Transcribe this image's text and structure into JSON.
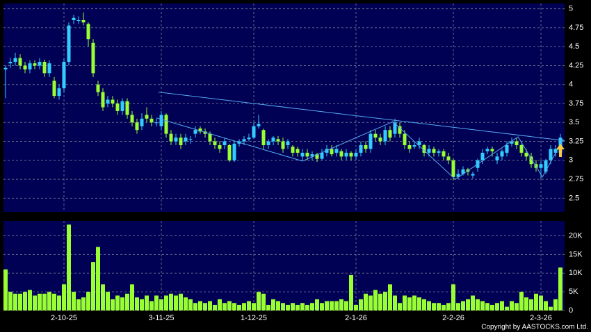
{
  "chart_data": [
    {
      "type": "candlestick",
      "categories": [
        null,
        null,
        null,
        null,
        null,
        null,
        null,
        null,
        null,
        null,
        null,
        null,
        "2-10-25",
        null,
        null,
        null,
        null,
        null,
        null,
        null,
        null,
        null,
        null,
        null,
        null,
        null,
        null,
        null,
        null,
        null,
        null,
        null,
        "3-11-25",
        null,
        null,
        null,
        null,
        null,
        null,
        null,
        null,
        null,
        null,
        null,
        null,
        null,
        null,
        null,
        null,
        null,
        null,
        "1-12-25",
        null,
        null,
        null,
        null,
        null,
        null,
        null,
        null,
        null,
        null,
        null,
        null,
        null,
        null,
        null,
        null,
        null,
        null,
        null,
        null,
        "2-1-26",
        null,
        null,
        null,
        null,
        null,
        null,
        null,
        null,
        null,
        null,
        null,
        null,
        null,
        null,
        null,
        null,
        null,
        null,
        null,
        "2-2-26",
        null,
        null,
        null,
        null,
        null,
        null,
        null,
        null,
        null,
        null,
        null,
        null,
        null,
        null,
        null,
        null,
        null,
        "2-3-26",
        null,
        null,
        null,
        null
      ],
      "ohlc": [
        [
          4.2,
          4.25,
          3.82,
          4.22
        ],
        [
          4.28,
          4.35,
          4.22,
          4.3
        ],
        [
          4.3,
          4.42,
          4.25,
          4.35
        ],
        [
          4.35,
          4.4,
          4.2,
          4.25
        ],
        [
          4.25,
          4.3,
          4.15,
          4.2
        ],
        [
          4.2,
          4.32,
          4.15,
          4.28
        ],
        [
          4.28,
          4.32,
          4.2,
          4.25
        ],
        [
          4.25,
          4.35,
          4.2,
          4.3
        ],
        [
          4.3,
          4.33,
          4.1,
          4.15
        ],
        [
          4.15,
          4.32,
          4.1,
          4.28
        ],
        [
          4.05,
          4.1,
          3.82,
          3.85
        ],
        [
          3.85,
          4.0,
          3.8,
          3.95
        ],
        [
          3.95,
          4.35,
          3.9,
          4.3
        ],
        [
          4.3,
          4.82,
          4.25,
          4.78
        ],
        [
          4.85,
          4.92,
          4.8,
          4.88
        ],
        [
          4.85,
          4.9,
          4.8,
          4.85
        ],
        [
          4.85,
          4.95,
          4.78,
          4.82
        ],
        [
          4.8,
          4.82,
          4.5,
          4.6
        ],
        [
          4.55,
          4.6,
          4.1,
          4.15
        ],
        [
          4.0,
          4.05,
          3.85,
          3.9
        ],
        [
          3.9,
          3.95,
          3.65,
          3.7
        ],
        [
          3.75,
          3.85,
          3.7,
          3.8
        ],
        [
          3.8,
          3.85,
          3.7,
          3.75
        ],
        [
          3.75,
          3.8,
          3.6,
          3.65
        ],
        [
          3.65,
          3.82,
          3.6,
          3.78
        ],
        [
          3.78,
          3.82,
          3.55,
          3.6
        ],
        [
          3.6,
          3.65,
          3.45,
          3.5
        ],
        [
          3.5,
          3.55,
          3.35,
          3.4
        ],
        [
          3.45,
          3.62,
          3.4,
          3.55
        ],
        [
          3.6,
          3.7,
          3.5,
          3.55
        ],
        [
          3.55,
          3.6,
          3.45,
          3.5
        ],
        [
          3.5,
          3.55,
          3.45,
          3.5
        ],
        [
          3.45,
          3.65,
          3.4,
          3.6
        ],
        [
          3.6,
          3.62,
          3.3,
          3.35
        ],
        [
          3.35,
          3.4,
          3.2,
          3.25
        ],
        [
          3.25,
          3.35,
          3.2,
          3.3
        ],
        [
          3.3,
          3.35,
          3.15,
          3.2
        ],
        [
          3.25,
          3.35,
          3.2,
          3.3
        ],
        [
          3.28,
          3.32,
          3.22,
          3.28
        ],
        [
          3.35,
          3.45,
          3.3,
          3.4
        ],
        [
          3.42,
          3.45,
          3.35,
          3.38
        ],
        [
          3.38,
          3.42,
          3.3,
          3.35
        ],
        [
          3.35,
          3.38,
          3.2,
          3.25
        ],
        [
          3.25,
          3.3,
          3.15,
          3.2
        ],
        [
          3.2,
          3.25,
          3.1,
          3.15
        ],
        [
          3.2,
          3.3,
          3.15,
          3.25
        ],
        [
          3.2,
          3.22,
          2.98,
          3.0
        ],
        [
          3.0,
          3.25,
          2.98,
          3.22
        ],
        [
          3.22,
          3.28,
          3.18,
          3.25
        ],
        [
          3.25,
          3.32,
          3.2,
          3.28
        ],
        [
          3.28,
          3.35,
          3.25,
          3.3
        ],
        [
          3.3,
          3.5,
          3.28,
          3.45
        ],
        [
          3.45,
          3.6,
          3.42,
          3.48
        ],
        [
          3.4,
          3.42,
          3.15,
          3.2
        ],
        [
          3.2,
          3.28,
          3.15,
          3.25
        ],
        [
          3.25,
          3.32,
          3.2,
          3.3
        ],
        [
          3.28,
          3.32,
          3.2,
          3.25
        ],
        [
          3.25,
          3.3,
          3.1,
          3.15
        ],
        [
          3.2,
          3.28,
          3.15,
          3.25
        ],
        [
          3.18,
          3.2,
          3.05,
          3.1
        ],
        [
          3.15,
          3.18,
          3.05,
          3.1
        ],
        [
          3.05,
          3.15,
          3.0,
          3.1
        ],
        [
          3.1,
          3.15,
          3.0,
          3.05
        ],
        [
          3.05,
          3.12,
          3.0,
          3.08
        ],
        [
          3.08,
          3.1,
          2.98,
          3.02
        ],
        [
          3.02,
          3.15,
          3.0,
          3.1
        ],
        [
          3.1,
          3.2,
          3.05,
          3.15
        ],
        [
          3.15,
          3.2,
          3.05,
          3.08
        ],
        [
          3.1,
          3.2,
          3.05,
          3.15
        ],
        [
          3.12,
          3.15,
          3.0,
          3.05
        ],
        [
          3.05,
          3.15,
          3.0,
          3.1
        ],
        [
          3.1,
          3.12,
          3.0,
          3.05
        ],
        [
          3.05,
          3.15,
          3.0,
          3.1
        ],
        [
          3.1,
          3.25,
          3.05,
          3.2
        ],
        [
          3.2,
          3.25,
          3.1,
          3.15
        ],
        [
          3.15,
          3.4,
          3.1,
          3.35
        ],
        [
          3.35,
          3.4,
          3.25,
          3.3
        ],
        [
          3.3,
          3.35,
          3.2,
          3.25
        ],
        [
          3.25,
          3.45,
          3.2,
          3.4
        ],
        [
          3.4,
          3.45,
          3.25,
          3.3
        ],
        [
          3.35,
          3.55,
          3.3,
          3.5
        ],
        [
          3.45,
          3.5,
          3.3,
          3.35
        ],
        [
          3.35,
          3.4,
          3.15,
          3.2
        ],
        [
          3.2,
          3.25,
          3.1,
          3.15
        ],
        [
          3.18,
          3.25,
          3.15,
          3.2
        ],
        [
          3.2,
          3.3,
          3.15,
          3.25
        ],
        [
          3.2,
          3.22,
          3.05,
          3.1
        ],
        [
          3.1,
          3.2,
          3.05,
          3.15
        ],
        [
          3.15,
          3.18,
          3.05,
          3.1
        ],
        [
          3.1,
          3.15,
          3.05,
          3.12
        ],
        [
          3.12,
          3.15,
          3.0,
          3.05
        ],
        [
          3.05,
          3.1,
          2.95,
          3.0
        ],
        [
          3.0,
          3.02,
          2.74,
          2.78
        ],
        [
          2.78,
          2.88,
          2.75,
          2.82
        ],
        [
          2.82,
          2.92,
          2.8,
          2.88
        ],
        [
          2.88,
          2.9,
          2.8,
          2.85
        ],
        [
          2.8,
          2.85,
          2.76,
          2.82
        ],
        [
          2.9,
          3.02,
          2.85,
          3.0
        ],
        [
          3.0,
          3.15,
          2.95,
          3.1
        ],
        [
          3.12,
          3.18,
          3.08,
          3.15
        ],
        [
          3.15,
          3.18,
          3.05,
          3.12
        ],
        [
          3.0,
          3.1,
          2.95,
          3.05
        ],
        [
          3.05,
          3.15,
          3.0,
          3.12
        ],
        [
          3.1,
          3.25,
          3.05,
          3.2
        ],
        [
          3.22,
          3.3,
          3.18,
          3.25
        ],
        [
          3.25,
          3.3,
          3.15,
          3.2
        ],
        [
          3.2,
          3.22,
          3.05,
          3.1
        ],
        [
          3.1,
          3.15,
          3.0,
          3.05
        ],
        [
          3.05,
          3.1,
          2.9,
          2.95
        ],
        [
          2.95,
          3.0,
          2.85,
          2.9
        ],
        [
          2.9,
          3.0,
          2.76,
          2.95
        ],
        [
          2.85,
          3.02,
          2.82,
          3.0
        ],
        [
          3.0,
          3.2,
          2.95,
          3.15
        ],
        [
          3.1,
          3.2,
          3.05,
          3.15
        ],
        [
          3.1,
          3.35,
          3.05,
          3.3
        ]
      ],
      "up_color": "#33ccff",
      "down_color": "#99ff33",
      "line_color": "#55aaee",
      "lines": [
        [
          [
            31.4,
            3.9
          ],
          [
            114.9,
            3.26
          ]
        ],
        [
          [
            31,
            3.56
          ],
          [
            61,
            2.99
          ],
          [
            79.6,
            3.51
          ],
          [
            92.4,
            2.75
          ],
          [
            105.3,
            3.31
          ],
          [
            110.3,
            2.78
          ],
          [
            114.6,
            3.28
          ]
        ]
      ],
      "ylim": [
        2.32,
        5.07
      ],
      "yticks": [
        2.5,
        2.75,
        3,
        3.25,
        3.5,
        3.75,
        4,
        4.25,
        4.5,
        4.75,
        5
      ],
      "grid": true
    },
    {
      "type": "volume",
      "values": [
        11000,
        5000,
        4500,
        4500,
        5000,
        5500,
        4000,
        4500,
        4500,
        5000,
        4500,
        4000,
        7000,
        23000,
        5000,
        3000,
        3500,
        5000,
        13000,
        17000,
        7000,
        5000,
        3000,
        4000,
        3500,
        4500,
        7000,
        3500,
        3000,
        4000,
        2500,
        4000,
        3000,
        4000,
        4500,
        4000,
        4500,
        3500,
        3000,
        2000,
        2500,
        2000,
        2500,
        1500,
        3000,
        2000,
        2500,
        2000,
        1500,
        2000,
        2500,
        2000,
        5000,
        4500,
        1500,
        3000,
        2500,
        2000,
        1500,
        2000,
        1500,
        2000,
        1500,
        2000,
        3000,
        2000,
        2500,
        2500,
        2500,
        3000,
        2500,
        9500,
        1500,
        3000,
        4500,
        4000,
        5500,
        4500,
        5000,
        7000,
        4000,
        2000,
        4000,
        3500,
        4000,
        3500,
        3000,
        2500,
        2000,
        2000,
        1500,
        2000,
        7000,
        2000,
        2500,
        3000,
        4000,
        3000,
        2500,
        2000,
        1500,
        2000,
        2500,
        1000,
        2500,
        2000,
        5000,
        3500,
        3000,
        4500,
        4000,
        2500,
        1000,
        3000,
        11500
      ],
      "color": "#99ff33",
      "ylim": [
        0,
        24000
      ],
      "yticks": [
        0,
        {
          "value": 5000,
          "label": "5K"
        },
        {
          "value": 10000,
          "label": "10K"
        },
        {
          "value": 15000,
          "label": "15K"
        },
        {
          "value": 20000,
          "label": "20K"
        }
      ],
      "copyright": "Copyright by AASTOCKS.com Ltd."
    }
  ]
}
